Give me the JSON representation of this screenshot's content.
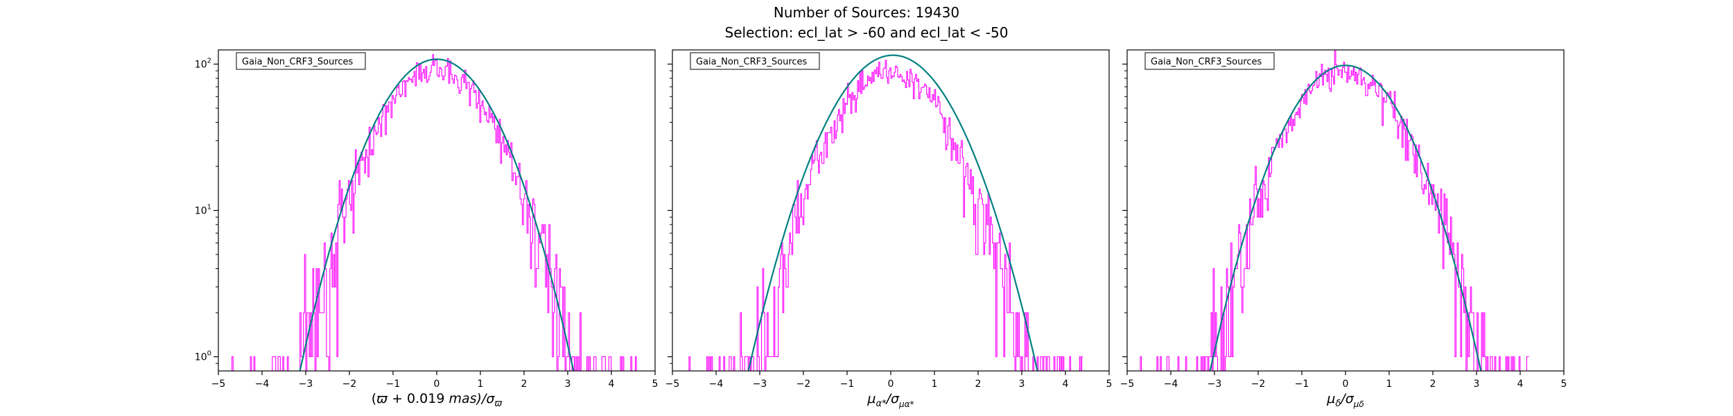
{
  "suptitle": "Number of Sources: 19430",
  "subtitle": "Selection: ecl_lat > -60 and ecl_lat < -50",
  "colors": {
    "histogram": "#ff00ff",
    "fit_curve": "#008080",
    "axes": "#000000",
    "legend_border": "#000000"
  },
  "chart_data": [
    {
      "type": "histogram",
      "legend": "Gaia_Non_CRF3_Sources",
      "legend_placement": "upper-left",
      "xlabel_parts": [
        "(",
        "ϖ",
        " + 0.019 ",
        "mas",
        ")/σ",
        "ϖ"
      ],
      "xlim": [
        -5,
        5
      ],
      "ylim": [
        0.8,
        125
      ],
      "yscale": "log",
      "x_ticks": [
        -5,
        -4,
        -3,
        -2,
        -1,
        0,
        1,
        2,
        3,
        4,
        5
      ],
      "y_ticks": [
        {
          "value": 1,
          "base": "10",
          "exp": "0"
        },
        {
          "value": 10,
          "base": "10",
          "exp": "1"
        },
        {
          "value": 100,
          "base": "10",
          "exp": "2"
        }
      ],
      "grid": false,
      "hist_range": [
        -4.9,
        4.6
      ],
      "hist_peak": 90,
      "hist_sigma": 1.0,
      "fit_curve": {
        "mu": 0.0,
        "sigma": 1.0,
        "peak": 108
      }
    },
    {
      "type": "histogram",
      "legend": "Gaia_Non_CRF3_Sources",
      "legend_placement": "upper-left",
      "xlabel_parts": [
        "μ",
        "α*",
        "/σ",
        "μα*"
      ],
      "xlim": [
        -5,
        5
      ],
      "ylim": [
        0.8,
        125
      ],
      "yscale": "log",
      "x_ticks": [
        -5,
        -4,
        -3,
        -2,
        -1,
        0,
        1,
        2,
        3,
        4,
        5
      ],
      "y_ticks": [
        {
          "value": 1,
          "base": "10",
          "exp": "0"
        },
        {
          "value": 10,
          "base": "10",
          "exp": "1"
        },
        {
          "value": 100,
          "base": "10",
          "exp": "2"
        }
      ],
      "grid": false,
      "hist_range": [
        -4.8,
        4.4
      ],
      "hist_peak": 88,
      "hist_sigma": 1.0,
      "fit_curve": {
        "mu": 0.05,
        "sigma": 1.05,
        "peak": 115
      }
    },
    {
      "type": "histogram",
      "legend": "Gaia_Non_CRF3_Sources",
      "legend_placement": "upper-left",
      "xlabel_parts": [
        "μ",
        "δ",
        "/σ",
        "μδ"
      ],
      "xlim": [
        -5,
        5
      ],
      "ylim": [
        0.8,
        125
      ],
      "yscale": "log",
      "x_ticks": [
        -5,
        -4,
        -3,
        -2,
        -1,
        0,
        1,
        2,
        3,
        4,
        5
      ],
      "y_ticks": [
        {
          "value": 1,
          "base": "10",
          "exp": "0"
        },
        {
          "value": 10,
          "base": "10",
          "exp": "1"
        },
        {
          "value": 100,
          "base": "10",
          "exp": "2"
        }
      ],
      "grid": false,
      "hist_range": [
        -4.9,
        4.2
      ],
      "hist_peak": 88,
      "hist_sigma": 1.0,
      "fit_curve": {
        "mu": 0.0,
        "sigma": 1.0,
        "peak": 98
      }
    }
  ]
}
